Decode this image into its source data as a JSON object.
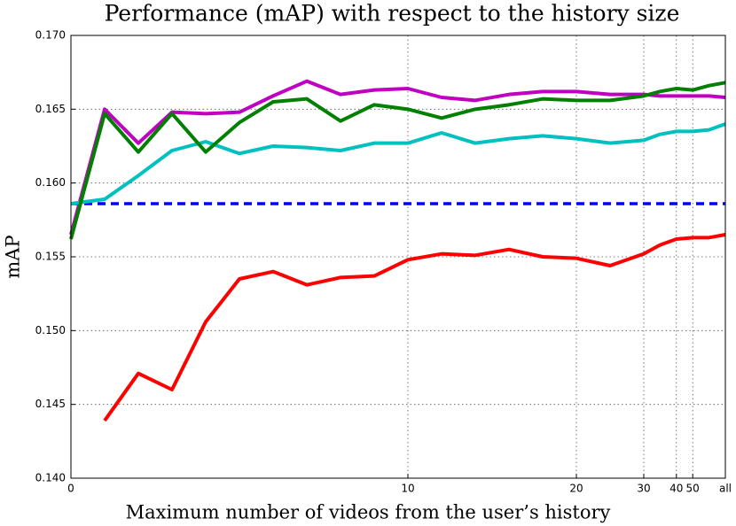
{
  "chart_data": {
    "type": "line",
    "title": "Performance (mAP) with respect to the history size",
    "x_label": "Maximum number of videos from the user’s history",
    "y_label": "mAP",
    "categories": [
      "0",
      null,
      null,
      null,
      null,
      null,
      null,
      null,
      null,
      null,
      "10",
      null,
      null,
      null,
      null,
      "20",
      null,
      "30",
      null,
      "40",
      "50",
      null,
      "all"
    ],
    "series": [
      {
        "color": "#0000ff",
        "dash": true,
        "values": [
          0.1586,
          0.1586,
          0.1586,
          0.1586,
          0.1586,
          0.1586,
          0.1586,
          0.1586,
          0.1586,
          0.1586,
          0.1586,
          0.1586,
          0.1586,
          0.1586,
          0.1586,
          0.1586,
          0.1586,
          0.1586,
          0.1586,
          0.1586,
          0.1586,
          0.1586,
          0.1586
        ]
      },
      {
        "color": "#c000c0",
        "values": [
          0.1565,
          0.165,
          0.1627,
          0.1648,
          0.1647,
          0.1648,
          0.1659,
          0.1669,
          0.166,
          0.1663,
          0.1664,
          0.1658,
          0.1656,
          0.166,
          0.1662,
          0.1662,
          0.166,
          0.166,
          0.1659,
          0.1659,
          0.1659,
          0.1659,
          0.1658
        ]
      },
      {
        "color": "#00c0c0",
        "values": [
          0.1586,
          0.1589,
          0.1605,
          0.1622,
          0.1628,
          0.162,
          0.1625,
          0.1624,
          0.1622,
          0.1627,
          0.1627,
          0.1634,
          0.1627,
          0.163,
          0.1632,
          0.163,
          0.1627,
          0.1629,
          0.1633,
          0.1635,
          0.1635,
          0.1636,
          0.164
        ]
      },
      {
        "color": "#008000",
        "values": [
          0.1562,
          0.1647,
          0.1621,
          0.1647,
          0.1621,
          0.1641,
          0.1655,
          0.1657,
          0.1642,
          0.1653,
          0.165,
          0.1644,
          0.165,
          0.1653,
          0.1657,
          0.1656,
          0.1656,
          0.1659,
          0.1662,
          0.1664,
          0.1663,
          0.1666,
          0.1668
        ]
      },
      {
        "color": "#ff0000",
        "values": [
          null,
          0.1439,
          0.1471,
          0.146,
          0.1506,
          0.1535,
          0.154,
          0.1531,
          0.1536,
          0.1537,
          0.1548,
          0.1552,
          0.1551,
          0.1555,
          0.155,
          0.1549,
          0.1544,
          0.1552,
          0.1558,
          0.1562,
          0.1563,
          0.1563,
          0.1565
        ]
      }
    ],
    "ylim": [
      0.14,
      0.17
    ],
    "yticks": [
      {
        "value": 0.14,
        "label": "0.140"
      },
      0.145,
      {
        "value": 0.15,
        "label": "0.150"
      },
      0.155,
      {
        "value": 0.16,
        "label": "0.160"
      },
      0.165,
      {
        "value": 0.17,
        "label": "0.170"
      }
    ],
    "grid": true
  }
}
